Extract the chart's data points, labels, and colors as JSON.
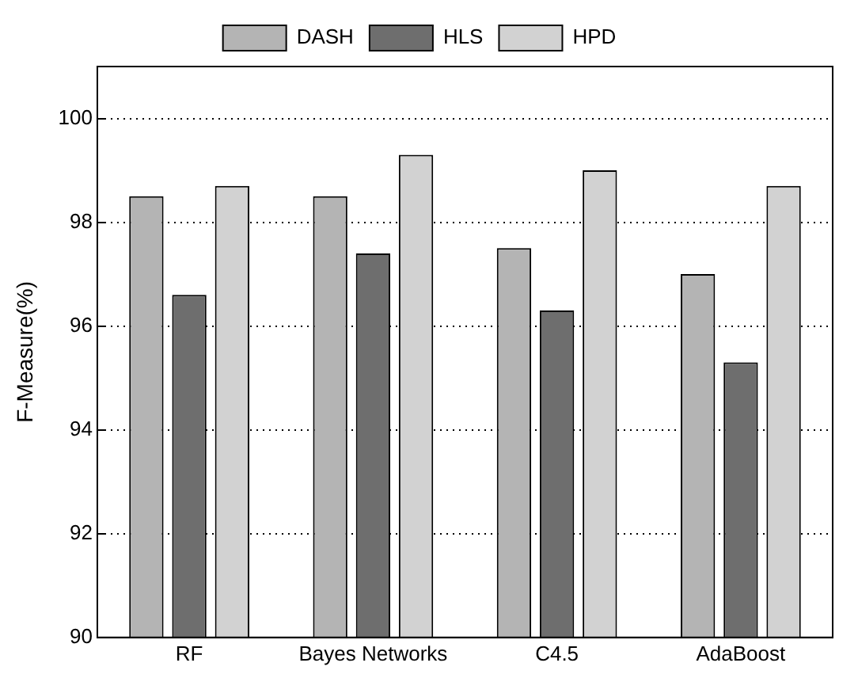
{
  "chart_data": {
    "type": "bar",
    "ylabel": "F-Measure(%)",
    "categories": [
      "RF",
      "Bayes Networks",
      "C4.5",
      "AdaBoost"
    ],
    "series": [
      {
        "name": "DASH",
        "color": "#b4b4b4",
        "values": [
          98.5,
          98.5,
          97.5,
          97.0
        ]
      },
      {
        "name": "HLS",
        "color": "#6e6e6e",
        "values": [
          96.6,
          97.4,
          96.3,
          95.3
        ]
      },
      {
        "name": "HPD",
        "color": "#d2d2d2",
        "values": [
          98.7,
          99.3,
          99.0,
          98.7
        ]
      }
    ],
    "ylim": [
      90,
      101
    ],
    "yticks": [
      90,
      92,
      94,
      96,
      98,
      100
    ],
    "grid": "y",
    "legend": "top"
  }
}
